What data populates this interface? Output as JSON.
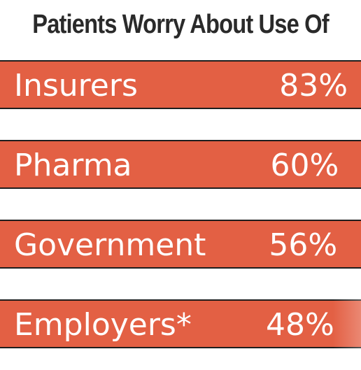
{
  "chart_data": {
    "type": "bar",
    "title": "Patients Worry About Use Of",
    "categories": [
      "Insurers",
      "Pharma",
      "Government",
      "Employers*"
    ],
    "values": [
      83,
      60,
      56,
      48
    ],
    "value_labels": [
      "83%",
      "60%",
      "56%",
      "48%"
    ],
    "unit": "%",
    "xlabel": "",
    "ylabel": "",
    "grid": false,
    "colors": {
      "bar": "#E36044",
      "bar_border": "#1e1e1e",
      "text": "#ffffff",
      "title": "#2a2a2a"
    }
  }
}
